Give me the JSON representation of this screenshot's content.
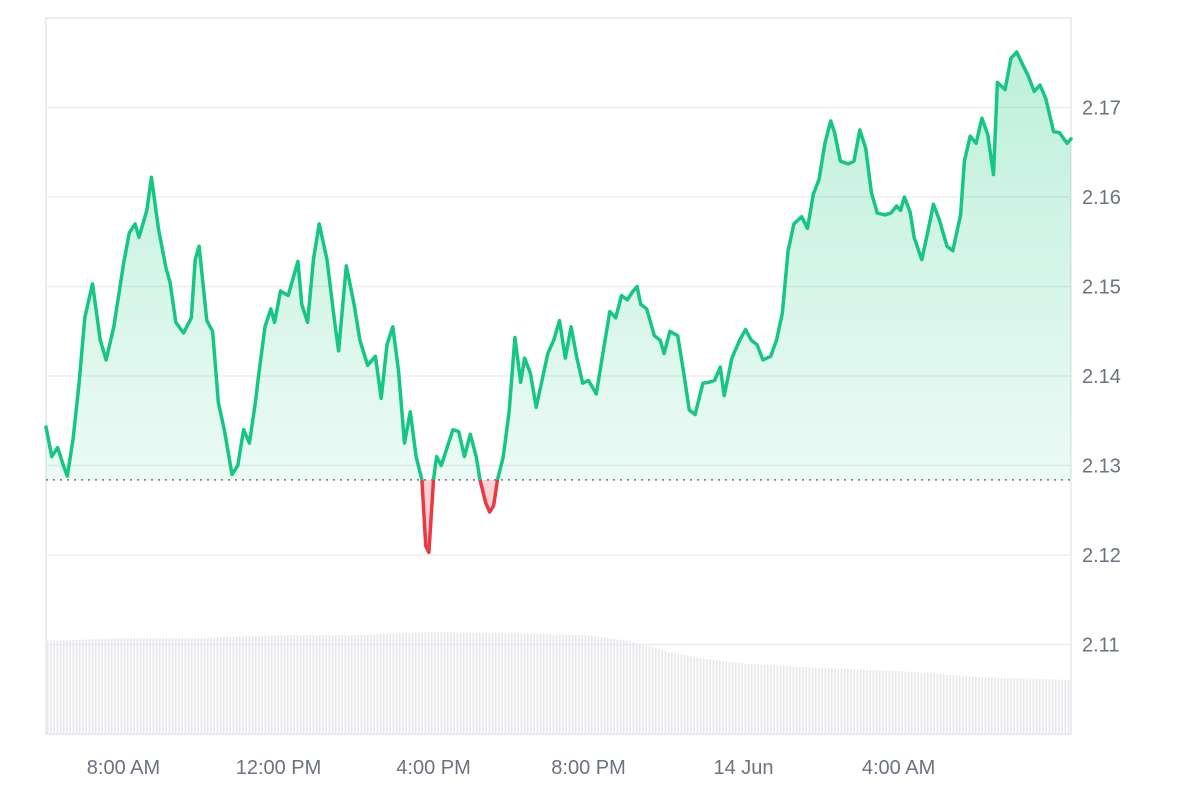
{
  "chart_data": {
    "type": "area",
    "title": "",
    "xlabel": "",
    "ylabel": "",
    "baseline": 2.1284,
    "ylim": [
      2.1,
      2.18
    ],
    "y_ticks": [
      "2.11",
      "2.12",
      "2.13",
      "2.14",
      "2.15",
      "2.16",
      "2.17"
    ],
    "x_ticks": [
      "8:00 AM",
      "12:00 PM",
      "4:00 PM",
      "8:00 PM",
      "14 Jun",
      "4:00 AM"
    ],
    "x_tick_hours": [
      8,
      12,
      16,
      20,
      24,
      28
    ],
    "x_range_hours": [
      6.0,
      30.1
    ],
    "series": [
      {
        "color_up": "#16c784",
        "color_down": "#ea3943",
        "points": [
          [
            6.0,
            2.1343
          ],
          [
            6.15,
            2.131
          ],
          [
            6.3,
            2.132
          ],
          [
            6.45,
            2.13
          ],
          [
            6.55,
            2.1288
          ],
          [
            6.7,
            2.133
          ],
          [
            6.85,
            2.139
          ],
          [
            7.0,
            2.1465
          ],
          [
            7.2,
            2.1503
          ],
          [
            7.4,
            2.144
          ],
          [
            7.55,
            2.1418
          ],
          [
            7.75,
            2.1455
          ],
          [
            8.0,
            2.1525
          ],
          [
            8.15,
            2.156
          ],
          [
            8.3,
            2.157
          ],
          [
            8.4,
            2.1555
          ],
          [
            8.6,
            2.1585
          ],
          [
            8.72,
            2.1622
          ],
          [
            8.9,
            2.1565
          ],
          [
            9.1,
            2.152
          ],
          [
            9.2,
            2.1505
          ],
          [
            9.35,
            2.146
          ],
          [
            9.55,
            2.1448
          ],
          [
            9.75,
            2.1465
          ],
          [
            9.85,
            2.153
          ],
          [
            9.95,
            2.1545
          ],
          [
            10.15,
            2.1462
          ],
          [
            10.3,
            2.145
          ],
          [
            10.45,
            2.137
          ],
          [
            10.6,
            2.134
          ],
          [
            10.8,
            2.129
          ],
          [
            10.95,
            2.13
          ],
          [
            11.1,
            2.134
          ],
          [
            11.25,
            2.1325
          ],
          [
            11.4,
            2.137
          ],
          [
            11.5,
            2.1405
          ],
          [
            11.65,
            2.1455
          ],
          [
            11.8,
            2.1475
          ],
          [
            11.9,
            2.146
          ],
          [
            12.05,
            2.1495
          ],
          [
            12.25,
            2.149
          ],
          [
            12.5,
            2.1528
          ],
          [
            12.6,
            2.148
          ],
          [
            12.75,
            2.146
          ],
          [
            12.9,
            2.153
          ],
          [
            13.05,
            2.157
          ],
          [
            13.25,
            2.153
          ],
          [
            13.45,
            2.146
          ],
          [
            13.55,
            2.1428
          ],
          [
            13.75,
            2.1523
          ],
          [
            13.95,
            2.148
          ],
          [
            14.1,
            2.144
          ],
          [
            14.3,
            2.1412
          ],
          [
            14.5,
            2.1422
          ],
          [
            14.65,
            2.1375
          ],
          [
            14.8,
            2.1435
          ],
          [
            14.95,
            2.1455
          ],
          [
            15.1,
            2.1405
          ],
          [
            15.25,
            2.1325
          ],
          [
            15.4,
            2.136
          ],
          [
            15.55,
            2.131
          ],
          [
            15.7,
            2.1284
          ],
          [
            15.8,
            2.121
          ],
          [
            15.88,
            2.1203
          ],
          [
            16.0,
            2.1284
          ],
          [
            16.08,
            2.131
          ],
          [
            16.2,
            2.13
          ],
          [
            16.35,
            2.132
          ],
          [
            16.5,
            2.134
          ],
          [
            16.65,
            2.1338
          ],
          [
            16.8,
            2.131
          ],
          [
            16.95,
            2.1335
          ],
          [
            17.1,
            2.131
          ],
          [
            17.2,
            2.1284
          ],
          [
            17.35,
            2.1258
          ],
          [
            17.45,
            2.1248
          ],
          [
            17.55,
            2.1255
          ],
          [
            17.65,
            2.1284
          ],
          [
            17.8,
            2.131
          ],
          [
            17.95,
            2.136
          ],
          [
            18.1,
            2.1443
          ],
          [
            18.25,
            2.1393
          ],
          [
            18.35,
            2.142
          ],
          [
            18.5,
            2.1403
          ],
          [
            18.65,
            2.1365
          ],
          [
            18.8,
            2.1395
          ],
          [
            18.95,
            2.1425
          ],
          [
            19.1,
            2.144
          ],
          [
            19.25,
            2.1462
          ],
          [
            19.4,
            2.142
          ],
          [
            19.55,
            2.1455
          ],
          [
            19.7,
            2.142
          ],
          [
            19.85,
            2.1392
          ],
          [
            20.0,
            2.1395
          ],
          [
            20.2,
            2.138
          ],
          [
            20.35,
            2.142
          ],
          [
            20.55,
            2.1472
          ],
          [
            20.7,
            2.1465
          ],
          [
            20.85,
            2.149
          ],
          [
            21.0,
            2.1485
          ],
          [
            21.15,
            2.1495
          ],
          [
            21.25,
            2.15
          ],
          [
            21.35,
            2.148
          ],
          [
            21.5,
            2.1475
          ],
          [
            21.7,
            2.1445
          ],
          [
            21.85,
            2.144
          ],
          [
            21.95,
            2.1425
          ],
          [
            22.1,
            2.145
          ],
          [
            22.3,
            2.1445
          ],
          [
            22.45,
            2.1405
          ],
          [
            22.6,
            2.1362
          ],
          [
            22.75,
            2.1357
          ],
          [
            22.95,
            2.1392
          ],
          [
            23.1,
            2.1393
          ],
          [
            23.25,
            2.1395
          ],
          [
            23.4,
            2.141
          ],
          [
            23.5,
            2.1378
          ],
          [
            23.7,
            2.142
          ],
          [
            23.9,
            2.144
          ],
          [
            24.05,
            2.1452
          ],
          [
            24.2,
            2.144
          ],
          [
            24.35,
            2.1435
          ],
          [
            24.5,
            2.1418
          ],
          [
            24.7,
            2.1422
          ],
          [
            24.85,
            2.144
          ],
          [
            25.0,
            2.147
          ],
          [
            25.15,
            2.154
          ],
          [
            25.3,
            2.157
          ],
          [
            25.5,
            2.1578
          ],
          [
            25.65,
            2.1565
          ],
          [
            25.8,
            2.1603
          ],
          [
            25.95,
            2.162
          ],
          [
            26.1,
            2.166
          ],
          [
            26.25,
            2.1685
          ],
          [
            26.35,
            2.1672
          ],
          [
            26.5,
            2.164
          ],
          [
            26.7,
            2.1637
          ],
          [
            26.85,
            2.164
          ],
          [
            27.0,
            2.1675
          ],
          [
            27.15,
            2.1655
          ],
          [
            27.3,
            2.1605
          ],
          [
            27.45,
            2.1582
          ],
          [
            27.65,
            2.158
          ],
          [
            27.8,
            2.1582
          ],
          [
            27.95,
            2.159
          ],
          [
            28.05,
            2.1585
          ],
          [
            28.15,
            2.16
          ],
          [
            28.3,
            2.1583
          ],
          [
            28.4,
            2.1555
          ],
          [
            28.6,
            2.153
          ],
          [
            28.75,
            2.156
          ],
          [
            28.9,
            2.1592
          ],
          [
            29.05,
            2.1575
          ],
          [
            29.25,
            2.1545
          ],
          [
            29.4,
            2.154
          ],
          [
            29.6,
            2.158
          ],
          [
            29.7,
            2.164
          ],
          [
            29.85,
            2.1668
          ],
          [
            30.0,
            2.166
          ],
          [
            30.15,
            2.1688
          ],
          [
            30.3,
            2.167
          ],
          [
            30.45,
            2.1625
          ],
          [
            30.55,
            2.1728
          ],
          [
            30.75,
            2.172
          ],
          [
            30.9,
            2.1755
          ],
          [
            31.05,
            2.1762
          ],
          [
            31.2,
            2.1748
          ],
          [
            31.35,
            2.1735
          ],
          [
            31.5,
            2.1718
          ],
          [
            31.65,
            2.1725
          ],
          [
            31.8,
            2.171
          ],
          [
            32.0,
            2.1673
          ],
          [
            32.15,
            2.1672
          ],
          [
            32.35,
            2.166
          ],
          [
            32.45,
            2.1665
          ]
        ]
      }
    ],
    "volume": {
      "color": "#e5e7eb",
      "levels": [
        [
          6.0,
          0.62
        ],
        [
          8.0,
          0.64
        ],
        [
          10.0,
          0.64
        ],
        [
          12.0,
          0.66
        ],
        [
          14.0,
          0.66
        ],
        [
          16.0,
          0.68
        ],
        [
          18.0,
          0.67
        ],
        [
          20.0,
          0.66
        ],
        [
          21.0,
          0.62
        ],
        [
          22.0,
          0.55
        ],
        [
          23.0,
          0.5
        ],
        [
          24.0,
          0.47
        ],
        [
          26.0,
          0.44
        ],
        [
          28.0,
          0.42
        ],
        [
          30.0,
          0.38
        ],
        [
          32.45,
          0.36
        ]
      ]
    }
  }
}
